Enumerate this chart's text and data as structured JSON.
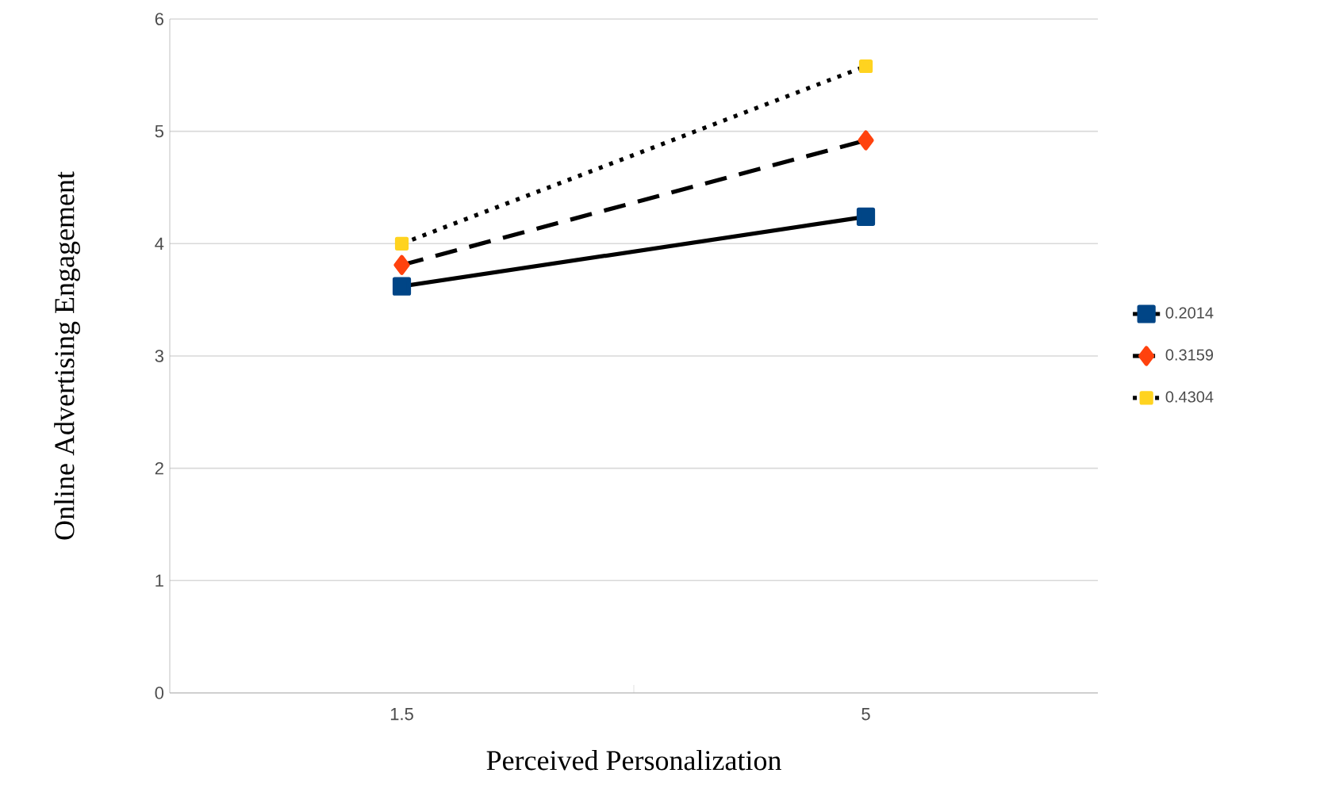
{
  "chart_data": {
    "type": "line",
    "xlabel": "Perceived Personalization",
    "ylabel": "Online Advertising Engagement",
    "categories": [
      "1.5",
      "5"
    ],
    "ylim": [
      0,
      6
    ],
    "yticks": [
      0,
      1,
      2,
      3,
      4,
      5,
      6
    ],
    "grid": "y",
    "legend": "right",
    "series": [
      {
        "name": "0.2014",
        "color": "#004586",
        "marker": "square",
        "line_style": "solid",
        "values": [
          3.62,
          4.24
        ]
      },
      {
        "name": "0.3159",
        "color": "#ff420e",
        "marker": "diamond",
        "line_style": "dashed",
        "values": [
          3.81,
          4.92
        ]
      },
      {
        "name": "0.4304",
        "color": "#ffd320",
        "marker": "square",
        "line_style": "dotted",
        "values": [
          4.0,
          5.58
        ]
      }
    ]
  }
}
